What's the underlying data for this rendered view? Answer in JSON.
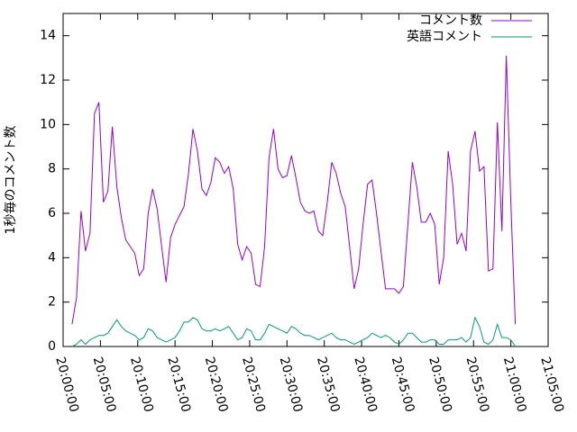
{
  "chart_data": {
    "type": "line",
    "ylabel": "1秒毎のコメント数",
    "x": [
      "20:01:12",
      "20:01:48",
      "20:02:24",
      "20:03:00",
      "20:03:36",
      "20:04:12",
      "20:04:48",
      "20:05:24",
      "20:06:00",
      "20:06:36",
      "20:07:12",
      "20:07:48",
      "20:08:24",
      "20:09:00",
      "20:09:36",
      "20:10:12",
      "20:10:48",
      "20:11:24",
      "20:12:00",
      "20:12:36",
      "20:13:12",
      "20:13:48",
      "20:14:24",
      "20:15:00",
      "20:15:36",
      "20:16:12",
      "20:16:48",
      "20:17:24",
      "20:18:00",
      "20:18:36",
      "20:19:12",
      "20:19:48",
      "20:20:24",
      "20:21:00",
      "20:21:36",
      "20:22:12",
      "20:22:48",
      "20:23:24",
      "20:24:00",
      "20:24:36",
      "20:25:12",
      "20:25:48",
      "20:26:24",
      "20:27:00",
      "20:27:36",
      "20:28:12",
      "20:28:48",
      "20:29:24",
      "20:30:00",
      "20:30:36",
      "20:31:12",
      "20:31:48",
      "20:32:24",
      "20:33:00",
      "20:33:36",
      "20:34:12",
      "20:34:48",
      "20:35:24",
      "20:36:00",
      "20:36:36",
      "20:37:12",
      "20:37:48",
      "20:38:24",
      "20:39:00",
      "20:39:36",
      "20:40:12",
      "20:40:48",
      "20:41:24",
      "20:42:00",
      "20:42:36",
      "20:43:12",
      "20:43:48",
      "20:44:24",
      "20:45:00",
      "20:45:36",
      "20:46:12",
      "20:46:48",
      "20:47:24",
      "20:48:00",
      "20:48:36",
      "20:49:12",
      "20:49:48",
      "20:50:24",
      "20:51:00",
      "20:51:36",
      "20:52:12",
      "20:52:48",
      "20:53:24",
      "20:54:00",
      "20:54:36",
      "20:55:12",
      "20:55:48",
      "20:56:24",
      "20:57:00",
      "20:57:36",
      "20:58:12",
      "20:58:48",
      "20:59:24",
      "21:00:00",
      "21:00:36"
    ],
    "series": [
      {
        "name": "コメント数",
        "color": "#9400d3",
        "values": [
          1.0,
          2.2,
          6.1,
          4.3,
          5.1,
          10.5,
          11.0,
          6.5,
          7.0,
          9.9,
          7.2,
          5.8,
          4.8,
          4.5,
          4.2,
          3.2,
          3.5,
          6.0,
          7.1,
          6.2,
          4.5,
          2.9,
          4.9,
          5.5,
          5.9,
          6.3,
          7.8,
          9.8,
          8.8,
          7.1,
          6.8,
          7.4,
          8.5,
          8.3,
          7.8,
          8.1,
          7.1,
          4.6,
          3.9,
          4.5,
          4.2,
          2.8,
          2.7,
          4.5,
          8.5,
          9.8,
          8.0,
          7.6,
          7.7,
          8.6,
          7.6,
          6.5,
          6.1,
          6.0,
          6.1,
          5.2,
          5.0,
          6.5,
          8.3,
          7.8,
          6.9,
          6.3,
          4.5,
          2.6,
          3.5,
          5.5,
          7.3,
          7.5,
          6.0,
          4.3,
          2.6,
          2.6,
          2.6,
          2.4,
          2.7,
          5.5,
          8.3,
          7.2,
          5.6,
          5.6,
          6.0,
          5.5,
          2.8,
          4.0,
          8.8,
          7.3,
          4.6,
          5.1,
          4.3,
          8.8,
          9.7,
          7.9,
          8.1,
          3.4,
          3.5,
          10.1,
          5.2,
          13.1,
          6.5,
          1.0
        ]
      },
      {
        "name": "英語コメント",
        "color": "#009e73",
        "values": [
          0.0,
          0.1,
          0.3,
          0.1,
          0.3,
          0.4,
          0.5,
          0.5,
          0.6,
          0.9,
          1.2,
          0.9,
          0.7,
          0.6,
          0.5,
          0.3,
          0.4,
          0.8,
          0.7,
          0.4,
          0.3,
          0.2,
          0.3,
          0.4,
          0.7,
          1.1,
          1.1,
          1.3,
          1.2,
          0.8,
          0.7,
          0.7,
          0.8,
          0.7,
          0.8,
          0.9,
          0.6,
          0.3,
          0.4,
          0.8,
          0.7,
          0.3,
          0.3,
          0.6,
          1.0,
          0.9,
          0.8,
          0.7,
          0.6,
          0.9,
          0.8,
          0.6,
          0.5,
          0.5,
          0.4,
          0.3,
          0.4,
          0.5,
          0.6,
          0.4,
          0.3,
          0.3,
          0.2,
          0.1,
          0.2,
          0.3,
          0.4,
          0.6,
          0.5,
          0.4,
          0.5,
          0.4,
          0.2,
          0.1,
          0.3,
          0.6,
          0.6,
          0.4,
          0.2,
          0.2,
          0.3,
          0.3,
          0.1,
          0.1,
          0.3,
          0.3,
          0.3,
          0.4,
          0.2,
          0.4,
          1.3,
          0.9,
          0.2,
          0.1,
          0.3,
          1.0,
          0.4,
          0.4,
          0.3,
          0.0
        ]
      }
    ],
    "xlim": [
      "20:00:00",
      "21:05:00"
    ],
    "xticks": [
      "20:00:00",
      "20:05:00",
      "20:10:00",
      "20:15:00",
      "20:20:00",
      "20:25:00",
      "20:30:00",
      "20:35:00",
      "20:40:00",
      "20:45:00",
      "20:50:00",
      "20:55:00",
      "21:00:00",
      "21:05:00"
    ],
    "ylim": [
      0,
      15
    ],
    "yticks": [
      0,
      2,
      4,
      6,
      8,
      10,
      12,
      14
    ],
    "legend": "upper-right"
  }
}
